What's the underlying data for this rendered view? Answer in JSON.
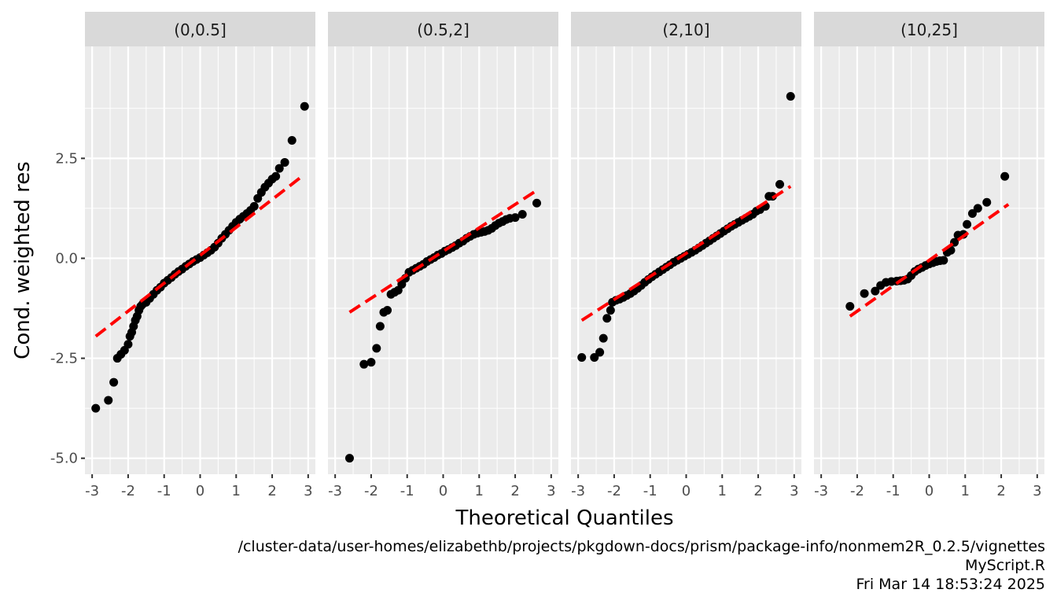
{
  "chart_data": {
    "type": "scatter",
    "subtype": "qq-plot-faceted",
    "xlabel": "Theoretical Quantiles",
    "ylabel": "Cond. weighted res",
    "xlim": [
      -3.2,
      3.2
    ],
    "ylim": [
      -5.4,
      5.3
    ],
    "x_ticks": [
      -3,
      -2,
      -1,
      0,
      1,
      2,
      3
    ],
    "x_tick_labels": [
      "-3",
      "-2",
      "-1",
      "0",
      "1",
      "2",
      "3"
    ],
    "y_ticks": [
      -5.0,
      -2.5,
      0.0,
      2.5
    ],
    "y_tick_labels": [
      "-5.0",
      "-2.5",
      "0.0",
      "2.5"
    ],
    "grid": true,
    "point_color": "#000000",
    "line_color": "#ff0000",
    "panel_background": "#ebebeb",
    "strip_background": "#d9d9d9",
    "facets": [
      {
        "strip": "(0,0.5]",
        "ref_line": {
          "x": [
            -2.9,
            2.9
          ],
          "y": [
            -1.95,
            2.1
          ]
        },
        "points": [
          [
            -2.9,
            -3.75
          ],
          [
            -2.55,
            -3.55
          ],
          [
            -2.4,
            -3.1
          ],
          [
            -2.3,
            -2.5
          ],
          [
            -2.2,
            -2.4
          ],
          [
            -2.1,
            -2.3
          ],
          [
            -2.0,
            -2.15
          ],
          [
            -1.95,
            -1.95
          ],
          [
            -1.9,
            -1.85
          ],
          [
            -1.85,
            -1.7
          ],
          [
            -1.8,
            -1.55
          ],
          [
            -1.75,
            -1.45
          ],
          [
            -1.7,
            -1.3
          ],
          [
            -1.65,
            -1.2
          ],
          [
            -1.6,
            -1.15
          ],
          [
            -1.5,
            -1.1
          ],
          [
            -1.4,
            -1.0
          ],
          [
            -1.3,
            -0.9
          ],
          [
            -1.2,
            -0.8
          ],
          [
            -1.1,
            -0.72
          ],
          [
            -1.0,
            -0.62
          ],
          [
            -0.9,
            -0.55
          ],
          [
            -0.8,
            -0.48
          ],
          [
            -0.7,
            -0.4
          ],
          [
            -0.6,
            -0.33
          ],
          [
            -0.5,
            -0.27
          ],
          [
            -0.4,
            -0.2
          ],
          [
            -0.3,
            -0.14
          ],
          [
            -0.2,
            -0.08
          ],
          [
            -0.1,
            -0.03
          ],
          [
            0.0,
            0.02
          ],
          [
            0.1,
            0.08
          ],
          [
            0.2,
            0.14
          ],
          [
            0.3,
            0.2
          ],
          [
            0.4,
            0.28
          ],
          [
            0.5,
            0.38
          ],
          [
            0.6,
            0.5
          ],
          [
            0.7,
            0.6
          ],
          [
            0.8,
            0.7
          ],
          [
            0.9,
            0.8
          ],
          [
            1.0,
            0.9
          ],
          [
            1.1,
            0.98
          ],
          [
            1.2,
            1.05
          ],
          [
            1.3,
            1.12
          ],
          [
            1.4,
            1.2
          ],
          [
            1.5,
            1.3
          ],
          [
            1.6,
            1.5
          ],
          [
            1.7,
            1.65
          ],
          [
            1.8,
            1.78
          ],
          [
            1.9,
            1.88
          ],
          [
            2.0,
            1.98
          ],
          [
            2.1,
            2.05
          ],
          [
            2.2,
            2.25
          ],
          [
            2.35,
            2.4
          ],
          [
            2.55,
            2.95
          ],
          [
            2.9,
            3.8
          ]
        ]
      },
      {
        "strip": "(0.5,2]",
        "ref_line": {
          "x": [
            -2.6,
            2.6
          ],
          "y": [
            -1.35,
            1.7
          ]
        },
        "points": [
          [
            -2.6,
            -5.0
          ],
          [
            -2.2,
            -2.65
          ],
          [
            -2.0,
            -2.6
          ],
          [
            -1.85,
            -2.25
          ],
          [
            -1.75,
            -1.7
          ],
          [
            -1.65,
            -1.35
          ],
          [
            -1.55,
            -1.3
          ],
          [
            -1.45,
            -0.9
          ],
          [
            -1.35,
            -0.85
          ],
          [
            -1.25,
            -0.8
          ],
          [
            -1.15,
            -0.65
          ],
          [
            -1.05,
            -0.5
          ],
          [
            -0.95,
            -0.35
          ],
          [
            -0.85,
            -0.3
          ],
          [
            -0.75,
            -0.25
          ],
          [
            -0.65,
            -0.2
          ],
          [
            -0.55,
            -0.15
          ],
          [
            -0.45,
            -0.08
          ],
          [
            -0.35,
            -0.03
          ],
          [
            -0.25,
            0.02
          ],
          [
            -0.15,
            0.08
          ],
          [
            -0.05,
            0.12
          ],
          [
            0.05,
            0.18
          ],
          [
            0.15,
            0.22
          ],
          [
            0.25,
            0.27
          ],
          [
            0.35,
            0.32
          ],
          [
            0.45,
            0.38
          ],
          [
            0.55,
            0.43
          ],
          [
            0.65,
            0.5
          ],
          [
            0.75,
            0.55
          ],
          [
            0.85,
            0.6
          ],
          [
            0.95,
            0.63
          ],
          [
            1.05,
            0.65
          ],
          [
            1.15,
            0.67
          ],
          [
            1.25,
            0.7
          ],
          [
            1.35,
            0.75
          ],
          [
            1.45,
            0.82
          ],
          [
            1.55,
            0.88
          ],
          [
            1.65,
            0.92
          ],
          [
            1.75,
            0.97
          ],
          [
            1.85,
            1.0
          ],
          [
            2.0,
            1.02
          ],
          [
            2.2,
            1.1
          ],
          [
            2.6,
            1.38
          ]
        ]
      },
      {
        "strip": "(2,10]",
        "ref_line": {
          "x": [
            -2.9,
            2.9
          ],
          "y": [
            -1.55,
            1.8
          ]
        },
        "points": [
          [
            -2.9,
            -2.48
          ],
          [
            -2.55,
            -2.48
          ],
          [
            -2.4,
            -2.35
          ],
          [
            -2.3,
            -2.0
          ],
          [
            -2.2,
            -1.5
          ],
          [
            -2.1,
            -1.3
          ],
          [
            -2.05,
            -1.1
          ],
          [
            -1.95,
            -1.05
          ],
          [
            -1.85,
            -1.02
          ],
          [
            -1.75,
            -0.98
          ],
          [
            -1.65,
            -0.93
          ],
          [
            -1.55,
            -0.88
          ],
          [
            -1.45,
            -0.82
          ],
          [
            -1.35,
            -0.75
          ],
          [
            -1.25,
            -0.68
          ],
          [
            -1.15,
            -0.6
          ],
          [
            -1.05,
            -0.53
          ],
          [
            -0.95,
            -0.46
          ],
          [
            -0.85,
            -0.4
          ],
          [
            -0.75,
            -0.34
          ],
          [
            -0.65,
            -0.28
          ],
          [
            -0.55,
            -0.22
          ],
          [
            -0.45,
            -0.16
          ],
          [
            -0.35,
            -0.1
          ],
          [
            -0.25,
            -0.05
          ],
          [
            -0.15,
            0.0
          ],
          [
            -0.05,
            0.05
          ],
          [
            0.05,
            0.1
          ],
          [
            0.15,
            0.15
          ],
          [
            0.25,
            0.2
          ],
          [
            0.35,
            0.26
          ],
          [
            0.45,
            0.32
          ],
          [
            0.55,
            0.38
          ],
          [
            0.65,
            0.44
          ],
          [
            0.75,
            0.5
          ],
          [
            0.85,
            0.56
          ],
          [
            0.95,
            0.62
          ],
          [
            1.05,
            0.68
          ],
          [
            1.15,
            0.74
          ],
          [
            1.25,
            0.8
          ],
          [
            1.35,
            0.85
          ],
          [
            1.45,
            0.9
          ],
          [
            1.55,
            0.95
          ],
          [
            1.65,
            1.0
          ],
          [
            1.75,
            1.05
          ],
          [
            1.85,
            1.1
          ],
          [
            1.95,
            1.18
          ],
          [
            2.05,
            1.22
          ],
          [
            2.2,
            1.3
          ],
          [
            2.3,
            1.55
          ],
          [
            2.4,
            1.55
          ],
          [
            2.6,
            1.85
          ],
          [
            2.9,
            4.05
          ]
        ]
      },
      {
        "strip": "(10,25]",
        "ref_line": {
          "x": [
            -2.2,
            2.2
          ],
          "y": [
            -1.45,
            1.35
          ]
        },
        "points": [
          [
            -2.2,
            -1.2
          ],
          [
            -1.8,
            -0.88
          ],
          [
            -1.5,
            -0.82
          ],
          [
            -1.35,
            -0.68
          ],
          [
            -1.2,
            -0.6
          ],
          [
            -1.05,
            -0.58
          ],
          [
            -0.9,
            -0.57
          ],
          [
            -0.8,
            -0.56
          ],
          [
            -0.7,
            -0.55
          ],
          [
            -0.6,
            -0.52
          ],
          [
            -0.5,
            -0.43
          ],
          [
            -0.4,
            -0.33
          ],
          [
            -0.3,
            -0.27
          ],
          [
            -0.2,
            -0.23
          ],
          [
            -0.1,
            -0.18
          ],
          [
            0.0,
            -0.14
          ],
          [
            0.1,
            -0.11
          ],
          [
            0.2,
            -0.08
          ],
          [
            0.3,
            -0.06
          ],
          [
            0.4,
            -0.05
          ],
          [
            0.5,
            0.15
          ],
          [
            0.6,
            0.2
          ],
          [
            0.7,
            0.4
          ],
          [
            0.8,
            0.58
          ],
          [
            0.95,
            0.6
          ],
          [
            1.05,
            0.85
          ],
          [
            1.2,
            1.12
          ],
          [
            1.35,
            1.25
          ],
          [
            1.6,
            1.4
          ],
          [
            2.1,
            2.05
          ]
        ]
      }
    ]
  },
  "caption": {
    "path": "/cluster-data/user-homes/elizabethb/projects/pkgdown-docs/prism/package-info/nonmem2R_0.2.5/vignettes",
    "script": "MyScript.R",
    "timestamp": "Fri Mar 14 18:53:24 2025"
  }
}
